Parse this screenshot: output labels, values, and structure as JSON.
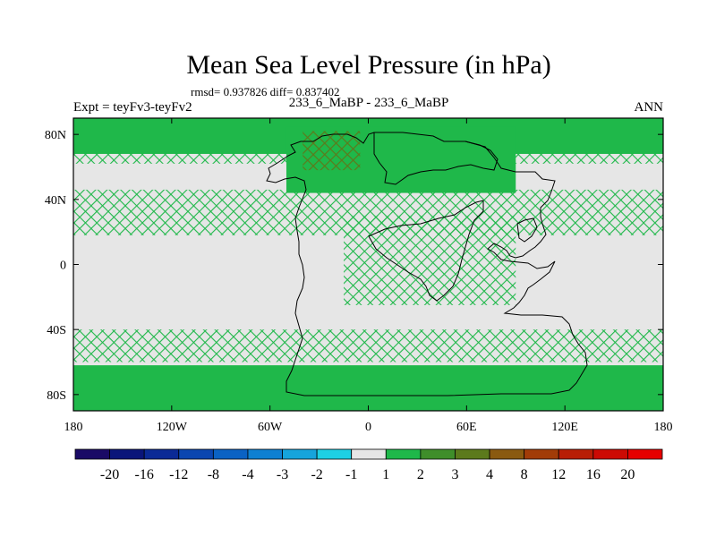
{
  "chart_data": {
    "type": "heatmap",
    "title": "Mean Sea Level Pressure (in hPa)",
    "stats": "rmsd= 0.937826 diff= 0.837402",
    "left_label": "Expt = teyFv3-teyFv2",
    "center_label": "233_6_MaBP - 233_6_MaBP",
    "right_label": "ANN",
    "x_range": [
      -180,
      180
    ],
    "y_range": [
      -90,
      90
    ],
    "x_ticks": [
      {
        "value": -180,
        "label": "180"
      },
      {
        "value": -120,
        "label": "120W"
      },
      {
        "value": -60,
        "label": "60W"
      },
      {
        "value": 0,
        "label": "0"
      },
      {
        "value": 60,
        "label": "60E"
      },
      {
        "value": 120,
        "label": "120E"
      },
      {
        "value": 180,
        "label": "180"
      }
    ],
    "y_ticks": [
      {
        "value": 80,
        "label": "80N"
      },
      {
        "value": 40,
        "label": "40N"
      },
      {
        "value": 0,
        "label": "0"
      },
      {
        "value": -40,
        "label": "40S"
      },
      {
        "value": -80,
        "label": "80S"
      }
    ],
    "colorbar": {
      "boundaries": [
        "-20",
        "-16",
        "-12",
        "-8",
        "-4",
        "-3",
        "-2",
        "-1",
        "1",
        "2",
        "3",
        "4",
        "8",
        "12",
        "16",
        "20"
      ],
      "colors": [
        "#1a0a66",
        "#0a157a",
        "#0b2a96",
        "#0b46b0",
        "#0b62c4",
        "#0f80d2",
        "#16a4dc",
        "#1ed0e4",
        "#e6e6e6",
        "#1fb84a",
        "#3f8e2a",
        "#5c7a1c",
        "#8a5a10",
        "#a23c08",
        "#b81e06",
        "#cc0a04",
        "#e60000"
      ]
    },
    "regions": [
      {
        "name": "arctic-band",
        "level": "1 to 2",
        "color": "#1fb84a",
        "lon": [
          -180,
          180
        ],
        "lat": [
          68,
          90
        ],
        "pattern": "solid"
      },
      {
        "name": "arctic-hatch",
        "level": "1 to 2",
        "color": "#1fb84a",
        "lon": [
          -180,
          180
        ],
        "lat": [
          62,
          70
        ],
        "pattern": "hatch"
      },
      {
        "name": "north-landmass",
        "level": "1 to 2",
        "color": "#1fb84a",
        "lon": [
          -50,
          90
        ],
        "lat": [
          44,
          85
        ],
        "pattern": "solid"
      },
      {
        "name": "arctic-hotspot",
        "level": "3 to 4",
        "color": "#5c7a1c",
        "lon": [
          -40,
          -5
        ],
        "lat": [
          58,
          82
        ],
        "pattern": "hatch"
      },
      {
        "name": "north-midlat-belt",
        "level": "1 to 2",
        "color": "#1fb84a",
        "lon": [
          -180,
          180
        ],
        "lat": [
          18,
          46
        ],
        "pattern": "hatch"
      },
      {
        "name": "tethys-region",
        "level": "1 to 2",
        "color": "#1fb84a",
        "lon": [
          -15,
          90
        ],
        "lat": [
          -25,
          30
        ],
        "pattern": "hatch"
      },
      {
        "name": "south-midlat-belt",
        "level": "1 to 2",
        "color": "#1fb84a",
        "lon": [
          -180,
          180
        ],
        "lat": [
          -60,
          -40
        ],
        "pattern": "hatch"
      },
      {
        "name": "antarctic-band",
        "level": "1 to 2",
        "color": "#1fb84a",
        "lon": [
          -180,
          180
        ],
        "lat": [
          -90,
          -62
        ],
        "pattern": "solid"
      }
    ]
  }
}
